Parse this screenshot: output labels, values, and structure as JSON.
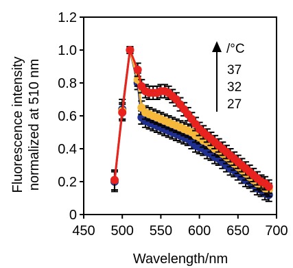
{
  "chart_data": {
    "type": "line",
    "xlabel": "Wavelength/nm",
    "ylabel_lines": [
      "Fluorescence intensity",
      "normalized at 510 nm"
    ],
    "xlim": [
      450,
      700
    ],
    "ylim": [
      0,
      1.2
    ],
    "x_ticks": [
      "450",
      "500",
      "550",
      "600",
      "650",
      "700"
    ],
    "y_ticks": [
      "0",
      "0.2",
      "0.4",
      "0.6",
      "0.8",
      "1.0",
      "1.2"
    ],
    "x": [
      490,
      500,
      510,
      520,
      525,
      530,
      535,
      540,
      545,
      550,
      555,
      560,
      565,
      570,
      575,
      580,
      585,
      590,
      595,
      600,
      605,
      610,
      615,
      620,
      625,
      630,
      635,
      640,
      645,
      650,
      655,
      660,
      665,
      670,
      675,
      680,
      685,
      690
    ],
    "series": [
      {
        "name": "27",
        "color": "#1f2f8f",
        "marker": "circle",
        "values": [
          0.2,
          0.64,
          1.0,
          0.8,
          0.59,
          0.57,
          0.56,
          0.55,
          0.54,
          0.53,
          0.52,
          0.51,
          0.5,
          0.49,
          0.48,
          0.47,
          0.46,
          0.44,
          0.42,
          0.41,
          0.4,
          0.38,
          0.37,
          0.35,
          0.34,
          0.32,
          0.3,
          0.28,
          0.27,
          0.25,
          0.23,
          0.21,
          0.2,
          0.18,
          0.16,
          0.15,
          0.13,
          0.12
        ],
        "errors": [
          0.06,
          0.06,
          0.02,
          0.04,
          0.04,
          0.04,
          0.04,
          0.04,
          0.04,
          0.04,
          0.04,
          0.04,
          0.04,
          0.04,
          0.04,
          0.04,
          0.04,
          0.04,
          0.04,
          0.04,
          0.04,
          0.04,
          0.04,
          0.04,
          0.04,
          0.04,
          0.04,
          0.04,
          0.04,
          0.04,
          0.04,
          0.04,
          0.04,
          0.04,
          0.04,
          0.04,
          0.04,
          0.04
        ]
      },
      {
        "name": "32",
        "color": "#f5b83a",
        "marker": "circle",
        "values": [
          0.21,
          0.63,
          1.0,
          0.82,
          0.65,
          0.62,
          0.61,
          0.6,
          0.59,
          0.58,
          0.57,
          0.56,
          0.55,
          0.54,
          0.53,
          0.52,
          0.51,
          0.5,
          0.48,
          0.47,
          0.45,
          0.44,
          0.42,
          0.4,
          0.39,
          0.37,
          0.35,
          0.33,
          0.31,
          0.29,
          0.27,
          0.25,
          0.23,
          0.21,
          0.19,
          0.18,
          0.16,
          0.15
        ],
        "errors": [
          0.06,
          0.05,
          0.02,
          0.04,
          0.04,
          0.04,
          0.04,
          0.04,
          0.04,
          0.04,
          0.04,
          0.04,
          0.04,
          0.04,
          0.04,
          0.04,
          0.04,
          0.04,
          0.04,
          0.04,
          0.04,
          0.04,
          0.04,
          0.04,
          0.04,
          0.04,
          0.04,
          0.04,
          0.04,
          0.04,
          0.04,
          0.04,
          0.04,
          0.04,
          0.04,
          0.04,
          0.04,
          0.04
        ]
      },
      {
        "name": "37",
        "color": "#e8231f",
        "marker": "circle",
        "values": [
          0.21,
          0.62,
          1.0,
          0.88,
          0.78,
          0.75,
          0.74,
          0.74,
          0.74,
          0.75,
          0.75,
          0.74,
          0.72,
          0.7,
          0.67,
          0.64,
          0.61,
          0.58,
          0.55,
          0.52,
          0.5,
          0.48,
          0.46,
          0.44,
          0.42,
          0.4,
          0.38,
          0.36,
          0.34,
          0.32,
          0.3,
          0.28,
          0.26,
          0.24,
          0.22,
          0.2,
          0.19,
          0.17
        ],
        "errors": [
          0.06,
          0.05,
          0.02,
          0.04,
          0.04,
          0.04,
          0.04,
          0.04,
          0.04,
          0.04,
          0.04,
          0.04,
          0.04,
          0.04,
          0.04,
          0.04,
          0.04,
          0.04,
          0.04,
          0.04,
          0.04,
          0.04,
          0.04,
          0.04,
          0.04,
          0.04,
          0.04,
          0.04,
          0.04,
          0.04,
          0.04,
          0.04,
          0.04,
          0.04,
          0.04,
          0.04,
          0.04,
          0.04
        ]
      }
    ],
    "legend": {
      "unit": "/°C",
      "entries": [
        "37",
        "32",
        "27"
      ],
      "arrow": "up"
    },
    "grid": false
  }
}
